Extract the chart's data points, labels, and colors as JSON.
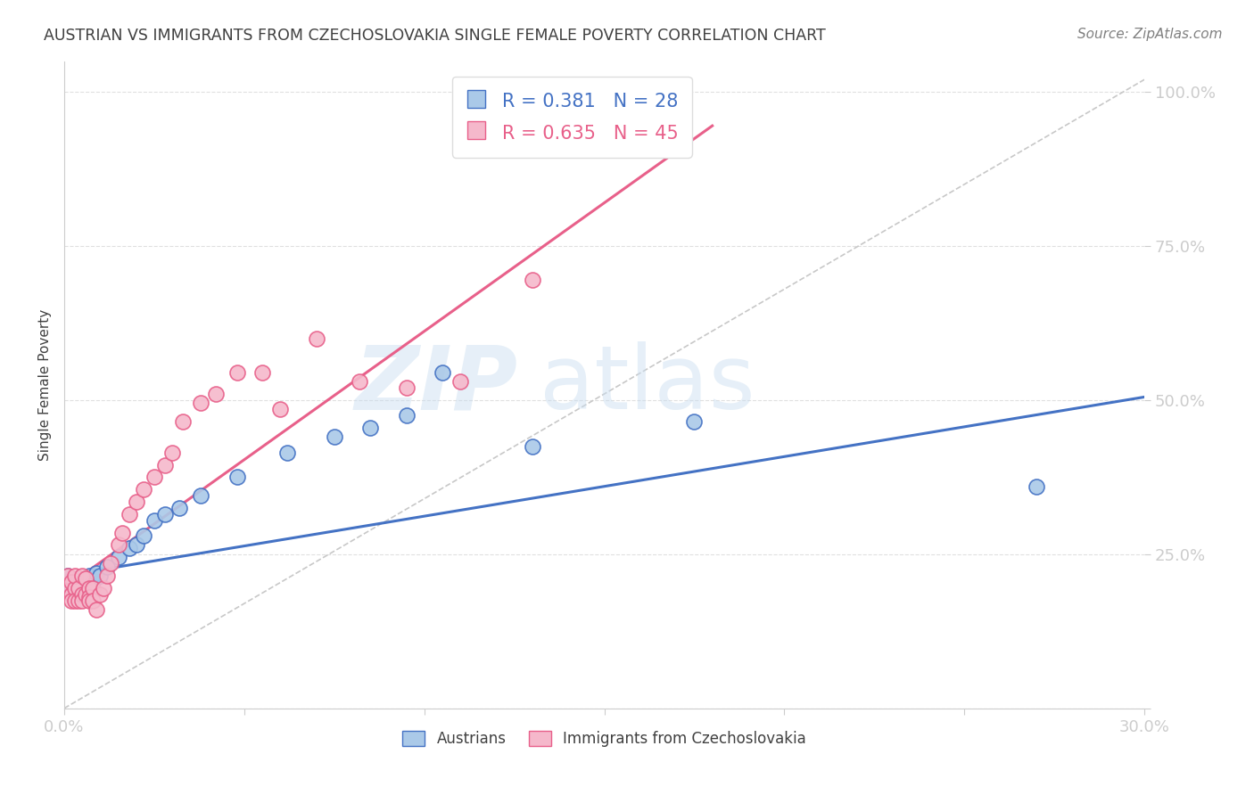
{
  "title": "AUSTRIAN VS IMMIGRANTS FROM CZECHOSLOVAKIA SINGLE FEMALE POVERTY CORRELATION CHART",
  "source": "Source: ZipAtlas.com",
  "xlabel": "",
  "ylabel": "Single Female Poverty",
  "x_min": 0.0,
  "x_max": 0.3,
  "y_min": 0.0,
  "y_max": 1.05,
  "x_ticks": [
    0.0,
    0.05,
    0.1,
    0.15,
    0.2,
    0.25,
    0.3
  ],
  "x_tick_labels": [
    "0.0%",
    "",
    "",
    "",
    "",
    "",
    "30.0%"
  ],
  "y_ticks": [
    0.0,
    0.25,
    0.5,
    0.75,
    1.0
  ],
  "y_tick_labels": [
    "",
    "25.0%",
    "50.0%",
    "75.0%",
    "100.0%"
  ],
  "blue_R": 0.381,
  "blue_N": 28,
  "pink_R": 0.635,
  "pink_N": 45,
  "blue_color": "#aac9e8",
  "pink_color": "#f5b8cb",
  "blue_line_color": "#4472c4",
  "pink_line_color": "#e8608a",
  "trendline_ref_color": "#c8c8c8",
  "grid_color": "#e0e0e0",
  "axis_color": "#cccccc",
  "tick_color": "#5b9bd5",
  "title_color": "#404040",
  "source_color": "#808080",
  "legend_label_blue": "Austrians",
  "legend_label_pink": "Immigrants from Czechoslovakia",
  "watermark_zip": "ZIP",
  "watermark_atlas": "atlas",
  "blue_scatter_x": [
    0.001,
    0.002,
    0.003,
    0.004,
    0.005,
    0.006,
    0.007,
    0.008,
    0.009,
    0.01,
    0.012,
    0.015,
    0.018,
    0.02,
    0.022,
    0.025,
    0.028,
    0.032,
    0.038,
    0.048,
    0.062,
    0.075,
    0.085,
    0.095,
    0.105,
    0.13,
    0.175,
    0.27
  ],
  "blue_scatter_y": [
    0.215,
    0.195,
    0.205,
    0.21,
    0.195,
    0.2,
    0.215,
    0.205,
    0.22,
    0.215,
    0.23,
    0.245,
    0.26,
    0.265,
    0.28,
    0.305,
    0.315,
    0.325,
    0.345,
    0.375,
    0.415,
    0.44,
    0.455,
    0.475,
    0.545,
    0.425,
    0.465,
    0.36
  ],
  "pink_scatter_x": [
    0.001,
    0.001,
    0.002,
    0.002,
    0.002,
    0.003,
    0.003,
    0.003,
    0.004,
    0.004,
    0.005,
    0.005,
    0.005,
    0.006,
    0.006,
    0.007,
    0.007,
    0.007,
    0.008,
    0.008,
    0.009,
    0.01,
    0.011,
    0.012,
    0.013,
    0.015,
    0.016,
    0.018,
    0.02,
    0.022,
    0.025,
    0.028,
    0.03,
    0.033,
    0.038,
    0.042,
    0.048,
    0.055,
    0.06,
    0.07,
    0.082,
    0.095,
    0.11,
    0.13,
    0.155
  ],
  "pink_scatter_y": [
    0.195,
    0.215,
    0.185,
    0.205,
    0.175,
    0.195,
    0.215,
    0.175,
    0.195,
    0.175,
    0.185,
    0.215,
    0.175,
    0.185,
    0.21,
    0.195,
    0.18,
    0.175,
    0.195,
    0.175,
    0.16,
    0.185,
    0.195,
    0.215,
    0.235,
    0.265,
    0.285,
    0.315,
    0.335,
    0.355,
    0.375,
    0.395,
    0.415,
    0.465,
    0.495,
    0.51,
    0.545,
    0.545,
    0.485,
    0.6,
    0.53,
    0.52,
    0.53,
    0.695,
    0.955
  ],
  "blue_trend_x": [
    0.0,
    0.3
  ],
  "blue_trend_y": [
    0.215,
    0.505
  ],
  "pink_trend_x": [
    0.0,
    0.18
  ],
  "pink_trend_y": [
    0.195,
    0.945
  ],
  "ref_trend_x": [
    0.0,
    0.3
  ],
  "ref_trend_y": [
    0.0,
    1.02
  ]
}
